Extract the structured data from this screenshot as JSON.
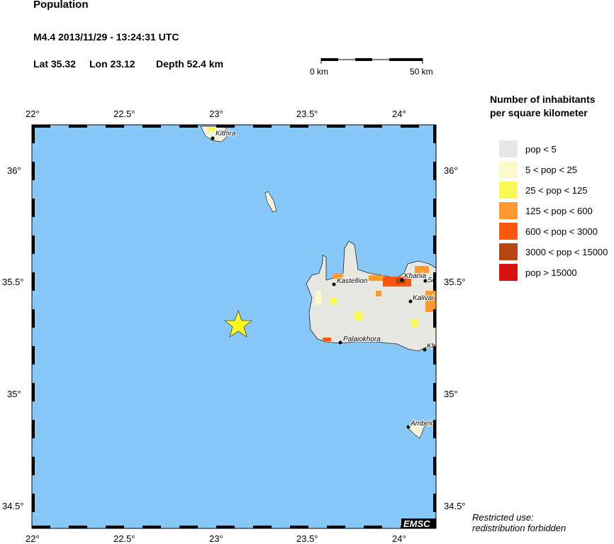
{
  "header": {
    "title": "Population",
    "event": "M4.4  2013/11/29 - 13:24:31 UTC",
    "lat": "Lat 35.32",
    "lon": "Lon  23.12",
    "depth": "Depth  52.4 km"
  },
  "scale_bar": {
    "start_label": "0 km",
    "end_label": "50 km"
  },
  "map": {
    "lon_ticks": [
      "22°",
      "22.5°",
      "23°",
      "23.5°",
      "24°"
    ],
    "lat_ticks": [
      "36°",
      "35.5°",
      "35°",
      "34.5°"
    ],
    "sea_color": "#87c8f8",
    "epicenter": {
      "lat": 35.32,
      "lon": 23.12,
      "color": "#f8f820",
      "icon": "star-icon"
    },
    "places": [
      "Kithira",
      "Kastellion",
      "Khania",
      "So",
      "Kalivai",
      "Palaiokhora",
      "Kh",
      "Ambelo"
    ],
    "credit": "EMSC"
  },
  "legend": {
    "title_line1": "Number of inhabitants",
    "title_line2": "per square kilometer",
    "items": [
      {
        "label": "pop < 5",
        "color": "#e6e6e6"
      },
      {
        "label": "5 < pop < 25",
        "color": "#fafac8"
      },
      {
        "label": "25 < pop < 125",
        "color": "#f8f858"
      },
      {
        "label": "125 < pop < 600",
        "color": "#fc9a30"
      },
      {
        "label": "600 < pop < 3000",
        "color": "#fc5814"
      },
      {
        "label": "3000 < pop < 15000",
        "color": "#b84614"
      },
      {
        "label": "pop > 15000",
        "color": "#d81010"
      }
    ]
  },
  "note": {
    "line1": "Restricted use:",
    "line2": "redistribution forbidden"
  }
}
